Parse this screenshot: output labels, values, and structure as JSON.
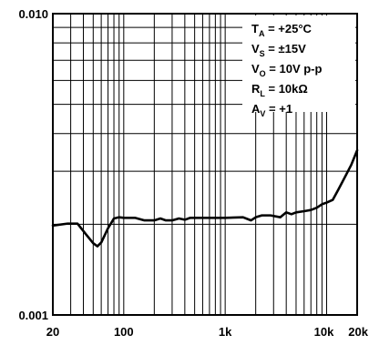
{
  "chart_data": {
    "type": "line",
    "title": "",
    "xlabel": "",
    "ylabel": "",
    "x_scale": "log",
    "y_scale": "log",
    "xlim": [
      20,
      20000
    ],
    "ylim": [
      0.001,
      0.01
    ],
    "grid": true,
    "x_ticks": [
      {
        "value": 20,
        "label": "20"
      },
      {
        "value": 100,
        "label": "100"
      },
      {
        "value": 1000,
        "label": "1k"
      },
      {
        "value": 10000,
        "label": "10k"
      },
      {
        "value": 20000,
        "label": "20k"
      }
    ],
    "y_ticks": [
      {
        "value": 0.01,
        "label": "0.010"
      },
      {
        "value": 0.001,
        "label": "0.001"
      }
    ],
    "series": [
      {
        "name": "",
        "x": [
          20,
          28,
          35,
          42,
          50,
          55,
          60,
          70,
          80,
          90,
          100,
          130,
          160,
          200,
          230,
          260,
          300,
          350,
          400,
          450,
          500,
          1000,
          1500,
          1800,
          2000,
          2300,
          2800,
          3500,
          4000,
          4500,
          5000,
          6000,
          7000,
          8000,
          9000,
          10000,
          11500,
          13000,
          15000,
          17500,
          20000
        ],
        "y": [
          0.00198,
          0.00201,
          0.00201,
          0.00186,
          0.00173,
          0.00169,
          0.00174,
          0.00194,
          0.00209,
          0.00211,
          0.0021,
          0.0021,
          0.00206,
          0.00206,
          0.00209,
          0.00206,
          0.00206,
          0.00209,
          0.00207,
          0.0021,
          0.0021,
          0.0021,
          0.00211,
          0.00206,
          0.00211,
          0.00214,
          0.00214,
          0.00211,
          0.00219,
          0.00216,
          0.00219,
          0.00221,
          0.00223,
          0.00227,
          0.00233,
          0.00236,
          0.00241,
          0.0026,
          0.00285,
          0.00315,
          0.00352
        ]
      }
    ],
    "conditions": [
      {
        "main": "T",
        "sub": "A",
        "rest": " = +25°C"
      },
      {
        "main": "V",
        "sub": "S",
        "rest": " = ±15V"
      },
      {
        "main": "V",
        "sub": "O",
        "rest": " = 10V p-p"
      },
      {
        "main": "R",
        "sub": "L",
        "rest": " = 10kΩ"
      },
      {
        "main": "A",
        "sub": "V",
        "rest": " = +1"
      }
    ],
    "legend_position": "top-right"
  }
}
